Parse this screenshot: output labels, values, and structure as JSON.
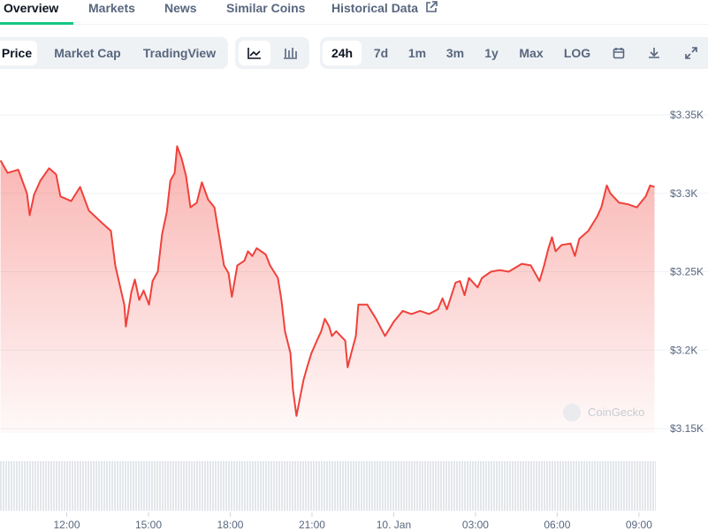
{
  "tabs": [
    "Overview",
    "Markets",
    "News",
    "Similar Coins",
    "Historical Data"
  ],
  "chart_kind_buttons": [
    "Price",
    "Market Cap",
    "TradingView"
  ],
  "range_buttons": [
    "24h",
    "7d",
    "1m",
    "3m",
    "1y",
    "Max",
    "LOG"
  ],
  "watermark": "CoinGecko",
  "chart_data": {
    "type": "line",
    "color": "#f0413b",
    "x": [
      9.57,
      9.83,
      10.22,
      10.54,
      10.64,
      10.8,
      11.03,
      11.35,
      11.61,
      11.77,
      12.16,
      12.49,
      12.81,
      13.3,
      13.62,
      13.78,
      14.11,
      14.17,
      14.37,
      14.5,
      14.66,
      14.82,
      15.02,
      15.15,
      15.34,
      15.5,
      15.67,
      15.8,
      15.96,
      16.05,
      16.22,
      16.38,
      16.54,
      16.77,
      16.96,
      17.19,
      17.42,
      17.61,
      17.77,
      17.94,
      18.06,
      18.26,
      18.52,
      18.65,
      18.81,
      18.97,
      19.3,
      19.46,
      19.75,
      19.88,
      20.01,
      20.21,
      20.3,
      20.43,
      20.6,
      20.69,
      20.82,
      20.98,
      21.18,
      21.34,
      21.47,
      21.63,
      21.73,
      21.89,
      22.22,
      22.31,
      22.44,
      22.61,
      22.7,
      23.03,
      23.35,
      23.68,
      24.0,
      24.33,
      24.65,
      24.97,
      25.3,
      25.62,
      25.79,
      25.95,
      26.27,
      26.43,
      26.6,
      26.76,
      27.08,
      27.24,
      27.57,
      27.89,
      28.22,
      28.7,
      29.03,
      29.35,
      29.52,
      29.68,
      29.81,
      29.94,
      30.16,
      30.49,
      30.65,
      30.81,
      31.14,
      31.46,
      31.62,
      31.82,
      31.95,
      32.27,
      32.6,
      32.92,
      33.25,
      33.41,
      33.57
    ],
    "values": [
      3321,
      3313,
      3315,
      3300,
      3286,
      3299,
      3308,
      3316,
      3312,
      3298,
      3295,
      3304,
      3289,
      3281,
      3276,
      3254,
      3229,
      3215,
      3237,
      3245,
      3232,
      3238,
      3229,
      3244,
      3250,
      3274,
      3288,
      3308,
      3313,
      3330,
      3322,
      3311,
      3291,
      3294,
      3307,
      3296,
      3291,
      3271,
      3254,
      3249,
      3234,
      3254,
      3257,
      3263,
      3260,
      3265,
      3261,
      3254,
      3246,
      3232,
      3212,
      3198,
      3175,
      3158,
      3173,
      3181,
      3189,
      3198,
      3206,
      3212,
      3220,
      3215,
      3209,
      3212,
      3206,
      3189,
      3198,
      3209,
      3229,
      3229,
      3220,
      3209,
      3218,
      3225,
      3223,
      3225,
      3223,
      3226,
      3233,
      3226,
      3243,
      3244,
      3235,
      3246,
      3240,
      3246,
      3250,
      3251,
      3250,
      3255,
      3254,
      3244,
      3254,
      3265,
      3272,
      3263,
      3267,
      3268,
      3260,
      3271,
      3276,
      3285,
      3291,
      3305,
      3300,
      3294,
      3293,
      3291,
      3298,
      3305,
      3304
    ],
    "xlim": [
      9.55,
      33.75
    ],
    "xticks": [
      {
        "value": 12,
        "label": "12:00"
      },
      {
        "value": 15,
        "label": "15:00"
      },
      {
        "value": 18,
        "label": "18:00"
      },
      {
        "value": 21,
        "label": "21:00"
      },
      {
        "value": 24,
        "label": "10. Jan"
      },
      {
        "value": 27,
        "label": "03:00"
      },
      {
        "value": 30,
        "label": "06:00"
      },
      {
        "value": 33,
        "label": "09:00"
      }
    ],
    "ylim": [
      3150,
      3350
    ],
    "yticks": [
      {
        "value": 3150,
        "label": "$3.15K"
      },
      {
        "value": 3200,
        "label": "$3.2K"
      },
      {
        "value": 3250,
        "label": "$3.25K"
      },
      {
        "value": 3300,
        "label": "$3.3K"
      },
      {
        "value": 3350,
        "label": "$3.35K"
      }
    ],
    "grid": true
  }
}
